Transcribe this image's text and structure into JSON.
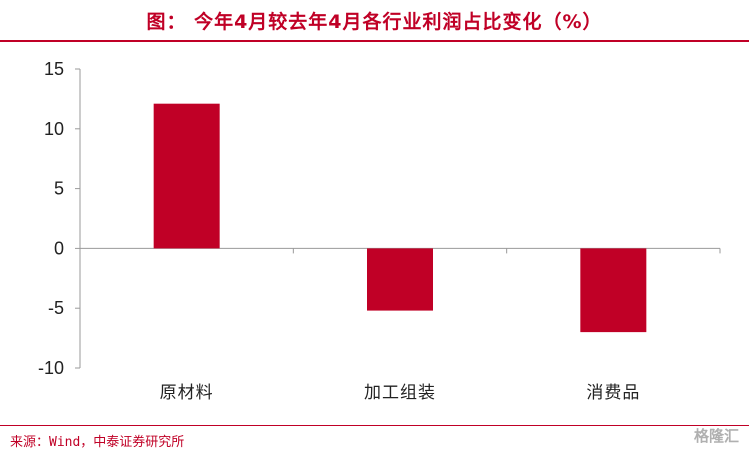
{
  "title": "图： 今年4月较去年4月各行业利润占比变化（%）",
  "source": "来源：Wind，中泰证券研究所",
  "watermark": "格隆汇",
  "colors": {
    "accent": "#c00026",
    "bar": "#c00026",
    "axis": "#9a9a9a"
  },
  "chart_data": {
    "type": "bar",
    "categories": [
      "原材料",
      "加工组装",
      "消费品"
    ],
    "values": [
      12.1,
      -5.2,
      -7.0
    ],
    "ylim": [
      -10,
      15
    ],
    "yticks": [
      15,
      10,
      5,
      0,
      -5,
      -10
    ],
    "grid": false,
    "legend": "none"
  }
}
